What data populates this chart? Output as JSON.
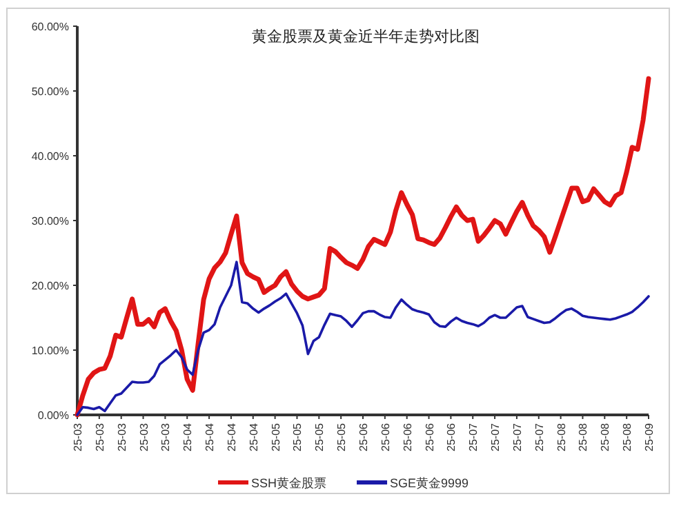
{
  "chart_data": {
    "type": "line",
    "title": "黄金股票及黄金近半年走势对比图",
    "categories": [
      "25-03",
      null,
      null,
      null,
      "25-03",
      null,
      null,
      null,
      "25-03",
      null,
      null,
      null,
      "25-03",
      null,
      null,
      null,
      "25-03",
      null,
      null,
      null,
      "25-04",
      null,
      null,
      null,
      "25-04",
      null,
      null,
      null,
      "25-04",
      null,
      null,
      null,
      "25-04",
      null,
      null,
      null,
      "25-05",
      null,
      null,
      null,
      "25-05",
      null,
      null,
      null,
      "25-05",
      null,
      null,
      null,
      "25-05",
      null,
      null,
      null,
      "25-06",
      null,
      null,
      null,
      "25-06",
      null,
      null,
      null,
      "25-06",
      null,
      null,
      null,
      "25-06",
      null,
      null,
      null,
      "25-06",
      null,
      null,
      null,
      "25-07",
      null,
      null,
      null,
      "25-07",
      null,
      null,
      null,
      "25-07",
      null,
      null,
      null,
      "25-07",
      null,
      null,
      null,
      "25-08",
      null,
      null,
      null,
      "25-08",
      null,
      null,
      null,
      "25-08",
      null,
      null,
      null,
      "25-08",
      null,
      null,
      null,
      "25-09"
    ],
    "ylim": [
      0,
      60
    ],
    "yticks": [
      {
        "value": 0,
        "label": "0.00%"
      },
      {
        "value": 10,
        "label": "10.00%"
      },
      {
        "value": 20,
        "label": "20.00%"
      },
      {
        "value": 30,
        "label": "30.00%"
      },
      {
        "value": 40,
        "label": "40.00%"
      },
      {
        "value": 50,
        "label": "50.00%"
      },
      {
        "value": 60,
        "label": "60.00%"
      }
    ],
    "grid": false,
    "legend": "bottom",
    "marker": "none",
    "line_style": "solid",
    "series": [
      {
        "name": "SSH黄金股票",
        "color": "#e01515",
        "values": [
          0,
          3,
          5.5,
          6.5,
          7,
          7.2,
          9.1,
          12.3,
          12,
          15,
          17.9,
          14,
          14,
          14.7,
          13.6,
          15.8,
          16.4,
          14.5,
          13,
          10,
          5.5,
          3.8,
          11,
          17.8,
          21,
          22.7,
          23.6,
          25,
          27.9,
          30.7,
          23.5,
          21.8,
          21.3,
          20.9,
          18.9,
          19.5,
          20,
          21.3,
          22.1,
          20.2,
          19.1,
          18.3,
          17.9,
          18.2,
          18.5,
          19.5,
          25.7,
          25.2,
          24.3,
          23.5,
          23.1,
          22.6,
          24,
          26,
          27.1,
          26.7,
          26.3,
          28.2,
          31.6,
          34.3,
          32.5,
          30.9,
          27.2,
          27,
          26.6,
          26.3,
          27.3,
          28.9,
          30.6,
          32.1,
          30.8,
          30,
          30.2,
          26.8,
          27.7,
          28.8,
          30,
          29.5,
          27.9,
          29.7,
          31.4,
          32.8,
          30.8,
          29.2,
          28.5,
          27.5,
          25.1,
          27.5,
          30,
          32.5,
          35,
          35,
          32.9,
          33.2,
          34.9,
          33.9,
          32.9,
          32.4,
          33.8,
          34.3,
          37.5,
          41.3,
          41,
          45.5,
          51.9
        ]
      },
      {
        "name": "SGE黄金9999",
        "color": "#1a1aa8",
        "values": [
          0,
          1.2,
          1.1,
          0.9,
          1.2,
          0.6,
          1.8,
          3,
          3.3,
          4.2,
          5.1,
          5,
          5,
          5.1,
          6,
          7.8,
          8.5,
          9.2,
          10,
          8.9,
          7,
          6.2,
          10,
          12.7,
          13.1,
          14,
          16.6,
          18.3,
          20,
          23.6,
          17.4,
          17.2,
          16.4,
          15.8,
          16.4,
          16.9,
          17.5,
          18,
          18.7,
          17.2,
          15.7,
          13.8,
          9.4,
          11.4,
          12,
          13.9,
          15.6,
          15.4,
          15.2,
          14.5,
          13.6,
          14.6,
          15.7,
          16,
          16,
          15.5,
          15.1,
          15,
          16.6,
          17.8,
          17,
          16.3,
          16,
          15.8,
          15.5,
          14.3,
          13.7,
          13.6,
          14.4,
          15,
          14.5,
          14.2,
          14,
          13.7,
          14.2,
          15,
          15.4,
          15,
          15,
          15.8,
          16.6,
          16.8,
          15.1,
          14.8,
          14.5,
          14.2,
          14.3,
          14.9,
          15.6,
          16.2,
          16.4,
          15.9,
          15.3,
          15.1,
          15,
          14.9,
          14.8,
          14.7,
          14.9,
          15.2,
          15.5,
          15.9,
          16.6,
          17.4,
          18.3
        ]
      }
    ]
  }
}
